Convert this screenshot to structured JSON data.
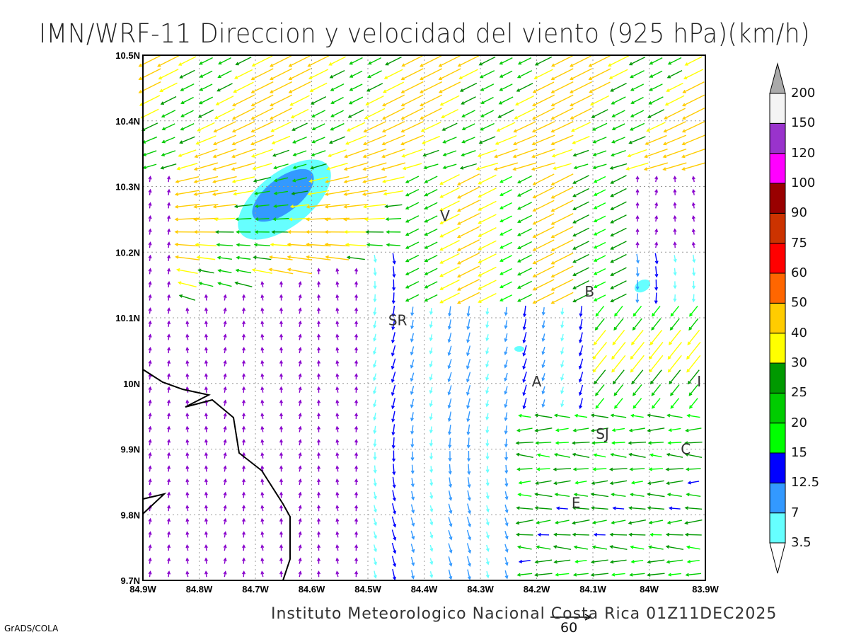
{
  "title": "IMN/WRF-11 Direccion y velocidad del viento (925 hPa)(km/h)",
  "footer": "Instituto Meteorologico Nacional Costa Rica 01Z11DEC2025",
  "credit": "GrADS/COLA",
  "reference_vector": {
    "value": "60"
  },
  "map": {
    "lon_labels": [
      "84.9W",
      "84.8W",
      "84.7W",
      "84.6W",
      "84.5W",
      "84.4W",
      "84.3W",
      "84.2W",
      "84.1W",
      "84W",
      "83.9W"
    ],
    "lat_labels": [
      "10.5N",
      "10.4N",
      "10.3N",
      "10.2N",
      "10.1N",
      "10N",
      "9.9N",
      "9.8N",
      "9.7N"
    ],
    "places": [
      {
        "name": "V",
        "lon": -84.363,
        "lat": 10.255
      },
      {
        "name": "B",
        "lon": -84.106,
        "lat": 10.14
      },
      {
        "name": "SR",
        "lon": -84.447,
        "lat": 10.096
      },
      {
        "name": "A",
        "lon": -84.2,
        "lat": 10.003
      },
      {
        "name": "I",
        "lon": -83.911,
        "lat": 10.003
      },
      {
        "name": "SJ",
        "lon": -84.083,
        "lat": 9.923
      },
      {
        "name": "C",
        "lon": -83.935,
        "lat": 9.9
      },
      {
        "name": "E",
        "lon": -84.13,
        "lat": 9.818
      }
    ]
  },
  "colorbar": {
    "levels": [
      "3.5",
      "7",
      "12.5",
      "15",
      "20",
      "25",
      "30",
      "40",
      "50",
      "60",
      "75",
      "90",
      "100",
      "120",
      "150",
      "200"
    ],
    "colors": [
      "#66ffff",
      "#3399ff",
      "#0000ff",
      "#00ff00",
      "#00cc00",
      "#009900",
      "#ffff00",
      "#ffcc00",
      "#ff6600",
      "#ff0000",
      "#cc3300",
      "#990000",
      "#ff00ff",
      "#9933cc",
      "#f4f4f4"
    ],
    "over_color": "#aaaaaa",
    "under_color": "#ffffff"
  }
}
